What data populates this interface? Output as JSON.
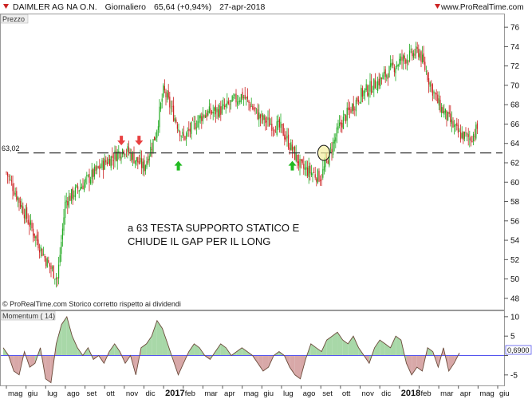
{
  "header": {
    "symbol": "DAIMLER AG NA O.N.",
    "period": "Giornaliero",
    "quote": "65,64 (+0,94%)",
    "date": "27-apr-2018",
    "website": "www.ProRealTime.com"
  },
  "price_panel": {
    "label": "Prezzo",
    "level_label": "63,02",
    "note_line1": "a 63 TESTA SUPPORTO STATICO E",
    "note_line2": "CHIUDE IL GAP PER IL LONG",
    "credit": "© ProRealTime.com  Storico corretto rispetto ai dividendi"
  },
  "momentum_panel": {
    "label": "Momentum ( 14)",
    "last_value_label": "0,6900"
  },
  "colors": {
    "up": "#22aa22",
    "down": "#cc2222",
    "momentum_pos_fill": "#a8d8a8",
    "momentum_neg_fill": "#d8a8a8",
    "momentum_line": "#6b4a3a",
    "zero_line": "#5555ee",
    "support_line": "#333333",
    "arrow_down": "#e84040",
    "arrow_up": "#22bb22",
    "circle_fill": "#f5f0a0"
  },
  "chart_data": [
    {
      "type": "candlestick",
      "title": "DAIMLER AG NA O.N.",
      "ylim": [
        47,
        77
      ],
      "y_ticks": [
        48,
        50,
        52,
        54,
        56,
        58,
        60,
        62,
        64,
        66,
        68,
        70,
        72,
        74,
        76
      ],
      "x_labels": [
        "mag",
        "giu",
        "lug",
        "ago",
        "set",
        "ott",
        "nov",
        "dic",
        "2017",
        "feb",
        "mar",
        "apr",
        "mag",
        "giu",
        "lug",
        "ago",
        "set",
        "ott",
        "nov",
        "dic",
        "2018",
        "feb",
        "mar",
        "apr",
        "mag",
        "giu"
      ],
      "bold_x_labels": [
        "2017",
        "2018"
      ],
      "support_level": 63.02,
      "close_path": [
        {
          "label": "mag",
          "value": 61.0
        },
        {
          "label": "giu",
          "value": 56.5
        },
        {
          "label": "lug",
          "value": 52.0
        },
        {
          "label": "lug",
          "value": 50.0
        },
        {
          "label": "ago",
          "value": 58.0
        },
        {
          "label": "set",
          "value": 60.0
        },
        {
          "label": "ott",
          "value": 62.0
        },
        {
          "label": "nov",
          "value": 63.5
        },
        {
          "label": "dic",
          "value": 61.5
        },
        {
          "label": "dic",
          "value": 65.0
        },
        {
          "label": "2017",
          "value": 69.5
        },
        {
          "label": "feb",
          "value": 64.5
        },
        {
          "label": "mar",
          "value": 67.0
        },
        {
          "label": "apr",
          "value": 67.5
        },
        {
          "label": "mag",
          "value": 69.0
        },
        {
          "label": "giu",
          "value": 66.5
        },
        {
          "label": "lug",
          "value": 65.5
        },
        {
          "label": "ago",
          "value": 61.5
        },
        {
          "label": "set",
          "value": 60.5
        },
        {
          "label": "ott",
          "value": 66.0
        },
        {
          "label": "nov",
          "value": 69.0
        },
        {
          "label": "dic",
          "value": 70.5
        },
        {
          "label": "2018",
          "value": 72.5
        },
        {
          "label": "feb",
          "value": 73.5
        },
        {
          "label": "feb",
          "value": 70.0
        },
        {
          "label": "mar",
          "value": 68.0
        },
        {
          "label": "apr",
          "value": 65.0
        },
        {
          "label": "apr",
          "value": 64.5
        },
        {
          "label": "mag",
          "value": 65.64
        }
      ],
      "annotations": [
        {
          "kind": "arrow-down",
          "x_label": "nov",
          "price": 63.8
        },
        {
          "kind": "arrow-down",
          "x_label": "dic",
          "price": 63.8
        },
        {
          "kind": "arrow-up",
          "x_label": "feb",
          "price": 62.2
        },
        {
          "kind": "arrow-up",
          "x_label": "ago",
          "price": 62.2
        },
        {
          "kind": "circle",
          "x_label": "set",
          "price": 63.02
        }
      ]
    },
    {
      "type": "area",
      "title": "Momentum ( 14)",
      "ylim": [
        -7.5,
        11
      ],
      "y_ticks": [
        -5,
        0,
        5,
        10
      ],
      "last_value": 0.69,
      "series": [
        {
          "values": [
            2,
            0,
            -4,
            -5,
            1,
            -3,
            -2,
            2,
            -6,
            -7,
            3,
            8,
            10,
            5,
            2,
            0,
            2,
            -1,
            0,
            -2,
            1,
            3,
            1,
            -2,
            0,
            -5,
            2,
            3,
            5,
            9,
            7,
            3,
            -1,
            -5,
            -2,
            1,
            3,
            2,
            0,
            -1,
            1,
            3,
            2,
            0,
            1,
            2,
            1,
            0,
            -2,
            -4,
            -3,
            0,
            1,
            0,
            -3,
            -5,
            -6,
            -1,
            3,
            2,
            1,
            4,
            5,
            6,
            4,
            3,
            5,
            2,
            0,
            -2,
            2,
            4,
            3,
            2,
            5,
            4,
            -2,
            -5,
            -3,
            -4,
            2,
            1,
            -3,
            2,
            -4,
            -2,
            0.69
          ]
        }
      ]
    }
  ]
}
